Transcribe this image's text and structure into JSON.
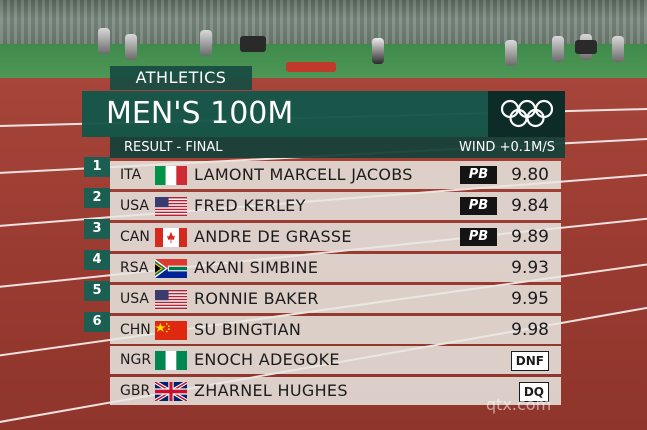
{
  "header": {
    "sport": "ATHLETICS",
    "event": "MEN'S 100M",
    "result_label": "RESULT - FINAL",
    "wind_label": "WIND",
    "wind_value": "+0.1M/S"
  },
  "results": [
    {
      "rank": "1",
      "country": "ITA",
      "flag": "italy-flag-icon",
      "name": "LAMONT MARCELL JACOBS",
      "badge": "PB",
      "time": "9.80"
    },
    {
      "rank": "2",
      "country": "USA",
      "flag": "usa-flag-icon",
      "name": "FRED KERLEY",
      "badge": "PB",
      "time": "9.84"
    },
    {
      "rank": "3",
      "country": "CAN",
      "flag": "canada-flag-icon",
      "name": "ANDRE DE GRASSE",
      "badge": "PB",
      "time": "9.89"
    },
    {
      "rank": "4",
      "country": "RSA",
      "flag": "south-africa-flag-icon",
      "name": "AKANI SIMBINE",
      "badge": "",
      "time": "9.93"
    },
    {
      "rank": "5",
      "country": "USA",
      "flag": "usa-flag-icon",
      "name": "RONNIE BAKER",
      "badge": "",
      "time": "9.95"
    },
    {
      "rank": "6",
      "country": "CHN",
      "flag": "china-flag-icon",
      "name": "SU BINGTIAN",
      "badge": "",
      "time": "9.98"
    },
    {
      "rank": "",
      "country": "NGR",
      "flag": "nigeria-flag-icon",
      "name": "ENOCH ADEGOKE",
      "badge": "",
      "status": "DNF"
    },
    {
      "rank": "",
      "country": "GBR",
      "flag": "uk-flag-icon",
      "name": "ZHARNEL HUGHES",
      "badge": "",
      "status": "DQ"
    }
  ],
  "watermark": "qtx.com",
  "colors": {
    "panel_green": "#13564a",
    "rank_green": "#1d5e52",
    "row_bg": "#e8e8e2",
    "track": "#9a3b31"
  }
}
